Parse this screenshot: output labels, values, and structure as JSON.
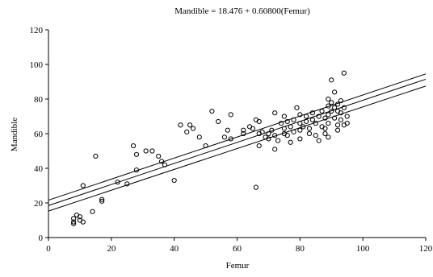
{
  "chart_data": {
    "type": "scatter",
    "title": "Mandible = 18.476 + 0.60800(Femur)",
    "xlabel": "Femur",
    "ylabel": "Mandible",
    "xlim": [
      0,
      120
    ],
    "ylim": [
      0,
      120
    ],
    "x_ticks": [
      0,
      20,
      40,
      60,
      80,
      100,
      120
    ],
    "y_ticks": [
      0,
      20,
      40,
      60,
      80,
      100,
      120
    ],
    "grid": false,
    "regression": {
      "intercept": 18.476,
      "slope": 0.608,
      "confidence_band": {
        "at_x_0": [
          15.3,
          21.6
        ],
        "at_x_120": [
          87.5,
          94.5
        ]
      }
    },
    "points": [
      [
        8,
        9
      ],
      [
        8,
        11
      ],
      [
        8,
        8
      ],
      [
        9,
        13
      ],
      [
        10,
        10
      ],
      [
        10,
        12
      ],
      [
        11,
        9
      ],
      [
        11,
        30
      ],
      [
        14,
        15
      ],
      [
        15,
        47
      ],
      [
        17,
        21
      ],
      [
        17,
        22
      ],
      [
        22,
        32
      ],
      [
        25,
        31
      ],
      [
        27,
        53
      ],
      [
        28,
        39
      ],
      [
        28,
        48
      ],
      [
        31,
        50
      ],
      [
        33,
        50
      ],
      [
        35,
        47
      ],
      [
        36,
        44
      ],
      [
        37,
        42
      ],
      [
        40,
        33
      ],
      [
        42,
        65
      ],
      [
        44,
        61
      ],
      [
        45,
        65
      ],
      [
        46,
        63
      ],
      [
        48,
        58
      ],
      [
        50,
        53
      ],
      [
        52,
        73
      ],
      [
        54,
        67
      ],
      [
        56,
        58
      ],
      [
        57,
        62
      ],
      [
        58,
        71
      ],
      [
        58,
        57
      ],
      [
        62,
        62
      ],
      [
        62,
        60
      ],
      [
        64,
        64
      ],
      [
        65,
        63
      ],
      [
        66,
        29
      ],
      [
        66,
        68
      ],
      [
        67,
        67
      ],
      [
        67,
        60
      ],
      [
        67,
        53
      ],
      [
        68,
        61
      ],
      [
        69,
        58
      ],
      [
        70,
        60
      ],
      [
        70,
        57
      ],
      [
        71,
        62
      ],
      [
        72,
        72
      ],
      [
        72,
        59
      ],
      [
        72,
        51
      ],
      [
        73,
        56
      ],
      [
        74,
        66
      ],
      [
        75,
        70
      ],
      [
        75,
        63
      ],
      [
        75,
        60
      ],
      [
        76,
        67
      ],
      [
        76,
        59
      ],
      [
        77,
        64
      ],
      [
        77,
        55
      ],
      [
        78,
        68
      ],
      [
        78,
        61
      ],
      [
        79,
        75
      ],
      [
        80,
        71
      ],
      [
        80,
        66
      ],
      [
        80,
        62
      ],
      [
        80,
        57
      ],
      [
        81,
        64
      ],
      [
        82,
        70
      ],
      [
        82,
        67
      ],
      [
        83,
        63
      ],
      [
        83,
        60
      ],
      [
        84,
        72
      ],
      [
        84,
        68
      ],
      [
        85,
        66
      ],
      [
        85,
        59
      ],
      [
        86,
        70
      ],
      [
        86,
        56
      ],
      [
        87,
        73
      ],
      [
        87,
        64
      ],
      [
        88,
        69
      ],
      [
        88,
        63
      ],
      [
        88,
        60
      ],
      [
        89,
        80
      ],
      [
        89,
        76
      ],
      [
        89,
        71
      ],
      [
        89,
        66
      ],
      [
        89,
        58
      ],
      [
        90,
        91
      ],
      [
        90,
        78
      ],
      [
        90,
        73
      ],
      [
        91,
        84
      ],
      [
        91,
        75
      ],
      [
        91,
        69
      ],
      [
        92,
        77
      ],
      [
        92,
        73
      ],
      [
        92,
        65
      ],
      [
        92,
        62
      ],
      [
        93,
        79
      ],
      [
        93,
        72
      ],
      [
        93,
        68
      ],
      [
        94,
        95
      ],
      [
        94,
        75
      ],
      [
        94,
        65
      ],
      [
        95,
        70
      ],
      [
        95,
        66
      ]
    ]
  }
}
